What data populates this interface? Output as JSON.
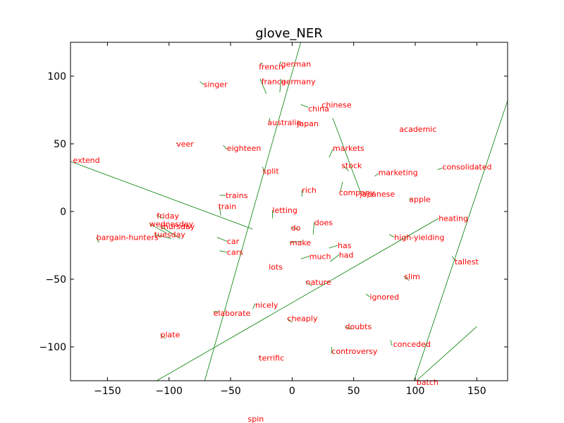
{
  "chart_data": {
    "type": "scatter",
    "title": "glove_NER",
    "xlabel": "",
    "ylabel": "",
    "xlim": [
      -180,
      175
    ],
    "ylim": [
      -125,
      125
    ],
    "xticks": [
      -150,
      -100,
      -50,
      0,
      50,
      100,
      150
    ],
    "yticks": [
      -100,
      -50,
      0,
      50,
      100
    ],
    "grid": false,
    "legend": "none",
    "colors": {
      "labels": "#ff0000",
      "arrows": "#008000",
      "axes": "#000000"
    },
    "labels": [
      {
        "text": "french",
        "x": -27,
        "y": 107
      },
      {
        "text": "german",
        "x": -9,
        "y": 109
      },
      {
        "text": "france",
        "x": -25,
        "y": 96
      },
      {
        "text": "germany",
        "x": -9,
        "y": 96
      },
      {
        "text": "singer",
        "x": -72,
        "y": 94
      },
      {
        "text": "chinese",
        "x": 24,
        "y": 79
      },
      {
        "text": "china",
        "x": 13,
        "y": 76
      },
      {
        "text": "australia",
        "x": -20,
        "y": 66
      },
      {
        "text": "japan",
        "x": 4,
        "y": 65
      },
      {
        "text": "academic",
        "x": 87,
        "y": 61
      },
      {
        "text": "veer",
        "x": -94,
        "y": 50
      },
      {
        "text": "eighteen",
        "x": -53,
        "y": 47
      },
      {
        "text": "markets",
        "x": 33,
        "y": 47
      },
      {
        "text": "extend",
        "x": -178,
        "y": 38
      },
      {
        "text": "stock",
        "x": 40,
        "y": 34
      },
      {
        "text": "consolidated",
        "x": 122,
        "y": 33
      },
      {
        "text": "split",
        "x": -24,
        "y": 30
      },
      {
        "text": "marketing",
        "x": 70,
        "y": 29
      },
      {
        "text": "rich",
        "x": 8,
        "y": 16
      },
      {
        "text": "company",
        "x": 38,
        "y": 14
      },
      {
        "text": "japanese",
        "x": 55,
        "y": 13
      },
      {
        "text": "trains",
        "x": -54,
        "y": 12
      },
      {
        "text": "apple",
        "x": 95,
        "y": 9
      },
      {
        "text": "train",
        "x": -60,
        "y": 4
      },
      {
        "text": "letting",
        "x": -16,
        "y": 1
      },
      {
        "text": "friday",
        "x": -110,
        "y": -3
      },
      {
        "text": "heating",
        "x": 119,
        "y": -5
      },
      {
        "text": "does",
        "x": 18,
        "y": -8
      },
      {
        "text": "wednesday",
        "x": -116,
        "y": -9
      },
      {
        "text": "thursday",
        "x": -107,
        "y": -11
      },
      {
        "text": "do",
        "x": -1,
        "y": -12
      },
      {
        "text": "tuesday",
        "x": -112,
        "y": -17
      },
      {
        "text": "bargain-hunters",
        "x": -159,
        "y": -19
      },
      {
        "text": "high-yielding",
        "x": 83,
        "y": -19
      },
      {
        "text": "car",
        "x": -53,
        "y": -22
      },
      {
        "text": "make",
        "x": -2,
        "y": -23
      },
      {
        "text": "has",
        "x": 37,
        "y": -25
      },
      {
        "text": "cars",
        "x": -53,
        "y": -30
      },
      {
        "text": "had",
        "x": 38,
        "y": -32
      },
      {
        "text": "much",
        "x": 14,
        "y": -33
      },
      {
        "text": "tallest",
        "x": 132,
        "y": -37
      },
      {
        "text": "lots",
        "x": -19,
        "y": -41
      },
      {
        "text": "slim",
        "x": 91,
        "y": -48
      },
      {
        "text": "nature",
        "x": 11,
        "y": -52
      },
      {
        "text": "ignored",
        "x": 63,
        "y": -63
      },
      {
        "text": "nicely",
        "x": -30,
        "y": -69
      },
      {
        "text": "elaborate",
        "x": -64,
        "y": -75
      },
      {
        "text": "cheaply",
        "x": -4,
        "y": -79
      },
      {
        "text": "doubts",
        "x": 43,
        "y": -85
      },
      {
        "text": "plate",
        "x": -107,
        "y": -91
      },
      {
        "text": "conceded",
        "x": 82,
        "y": -98
      },
      {
        "text": "controversy",
        "x": 32,
        "y": -103
      },
      {
        "text": "terrific",
        "x": -27,
        "y": -108
      },
      {
        "text": "batch",
        "x": 101,
        "y": -126
      },
      {
        "text": "spin",
        "x": -36,
        "y": -153
      }
    ],
    "arrows": [
      {
        "x1": -71,
        "y1": -125,
        "x2": 7,
        "y2": 125
      },
      {
        "x1": -180,
        "y1": 37,
        "x2": -32,
        "y2": -13
      },
      {
        "x1": -110,
        "y1": -125,
        "x2": 119,
        "y2": -5
      },
      {
        "x1": 99,
        "y1": -125,
        "x2": 175,
        "y2": 82
      },
      {
        "x1": 101,
        "y1": -125,
        "x2": 150,
        "y2": -85
      },
      {
        "x1": 33,
        "y1": 69,
        "x2": 56,
        "y2": 13
      },
      {
        "x1": -26,
        "y1": 98,
        "x2": -21,
        "y2": 87
      },
      {
        "x1": -9,
        "y1": 98,
        "x2": -10,
        "y2": 88
      },
      {
        "x1": -26,
        "y1": 110,
        "x2": -24,
        "y2": 109
      },
      {
        "x1": -9,
        "y1": 111,
        "x2": -10,
        "y2": 109
      },
      {
        "x1": -75,
        "y1": 96,
        "x2": -72,
        "y2": 94
      },
      {
        "x1": 7,
        "y1": 79,
        "x2": 13,
        "y2": 77
      },
      {
        "x1": -18,
        "y1": 69,
        "x2": -19,
        "y2": 66
      },
      {
        "x1": 5,
        "y1": 67,
        "x2": 4,
        "y2": 65
      },
      {
        "x1": -56,
        "y1": 49,
        "x2": -53,
        "y2": 46
      },
      {
        "x1": -93,
        "y1": 51,
        "x2": -94,
        "y2": 50
      },
      {
        "x1": 30,
        "y1": 40,
        "x2": 33,
        "y2": 46
      },
      {
        "x1": 46,
        "y1": 30,
        "x2": 41,
        "y2": 34
      },
      {
        "x1": 118,
        "y1": 31,
        "x2": 122,
        "y2": 32
      },
      {
        "x1": -24,
        "y1": 33,
        "x2": -23,
        "y2": 30
      },
      {
        "x1": 67,
        "y1": 26,
        "x2": 70,
        "y2": 28
      },
      {
        "x1": 8,
        "y1": 11,
        "x2": 8,
        "y2": 16
      },
      {
        "x1": 41,
        "y1": 22,
        "x2": 39,
        "y2": 14
      },
      {
        "x1": -59,
        "y1": 12,
        "x2": -54,
        "y2": 12
      },
      {
        "x1": 97,
        "y1": 9,
        "x2": 95,
        "y2": 9
      },
      {
        "x1": -58,
        "y1": -3,
        "x2": -59,
        "y2": 4
      },
      {
        "x1": -16,
        "y1": -5,
        "x2": -16,
        "y2": 1
      },
      {
        "x1": -104,
        "y1": -5,
        "x2": -110,
        "y2": -3
      },
      {
        "x1": 17,
        "y1": -17,
        "x2": 18,
        "y2": -8
      },
      {
        "x1": 5,
        "y1": -13,
        "x2": -1,
        "y2": -12
      },
      {
        "x1": -102,
        "y1": -16,
        "x2": -116,
        "y2": -9
      },
      {
        "x1": -91,
        "y1": -20,
        "x2": -107,
        "y2": -11
      },
      {
        "x1": -98,
        "y1": -20,
        "x2": -112,
        "y2": -17
      },
      {
        "x1": -157,
        "y1": -23,
        "x2": -159,
        "y2": -19
      },
      {
        "x1": 79,
        "y1": -17,
        "x2": 83,
        "y2": -19
      },
      {
        "x1": -61,
        "y1": -19,
        "x2": -53,
        "y2": -22
      },
      {
        "x1": 8,
        "y1": -22,
        "x2": -2,
        "y2": -23
      },
      {
        "x1": 30,
        "y1": -27,
        "x2": 37,
        "y2": -25
      },
      {
        "x1": -59,
        "y1": -29,
        "x2": -53,
        "y2": -30
      },
      {
        "x1": 31,
        "y1": -37,
        "x2": 38,
        "y2": -32
      },
      {
        "x1": 7,
        "y1": -35,
        "x2": 14,
        "y2": -33
      },
      {
        "x1": 130,
        "y1": -33,
        "x2": 132,
        "y2": -36
      },
      {
        "x1": 95,
        "y1": -51,
        "x2": 91,
        "y2": -48
      },
      {
        "x1": 16,
        "y1": -55,
        "x2": 11,
        "y2": -52
      },
      {
        "x1": 60,
        "y1": -61,
        "x2": 63,
        "y2": -63
      },
      {
        "x1": -32,
        "y1": -72,
        "x2": -30,
        "y2": -68
      },
      {
        "x1": -59,
        "y1": -74,
        "x2": -64,
        "y2": -74
      },
      {
        "x1": 0,
        "y1": -82,
        "x2": -4,
        "y2": -79
      },
      {
        "x1": 48,
        "y1": -87,
        "x2": 43,
        "y2": -85
      },
      {
        "x1": -103,
        "y1": -94,
        "x2": -107,
        "y2": -91
      },
      {
        "x1": 81,
        "y1": -99,
        "x2": 80,
        "y2": -95
      },
      {
        "x1": 32,
        "y1": -105,
        "x2": 32,
        "y2": -100
      },
      {
        "x1": -27,
        "y1": -107,
        "x2": -27,
        "y2": -108
      }
    ]
  }
}
